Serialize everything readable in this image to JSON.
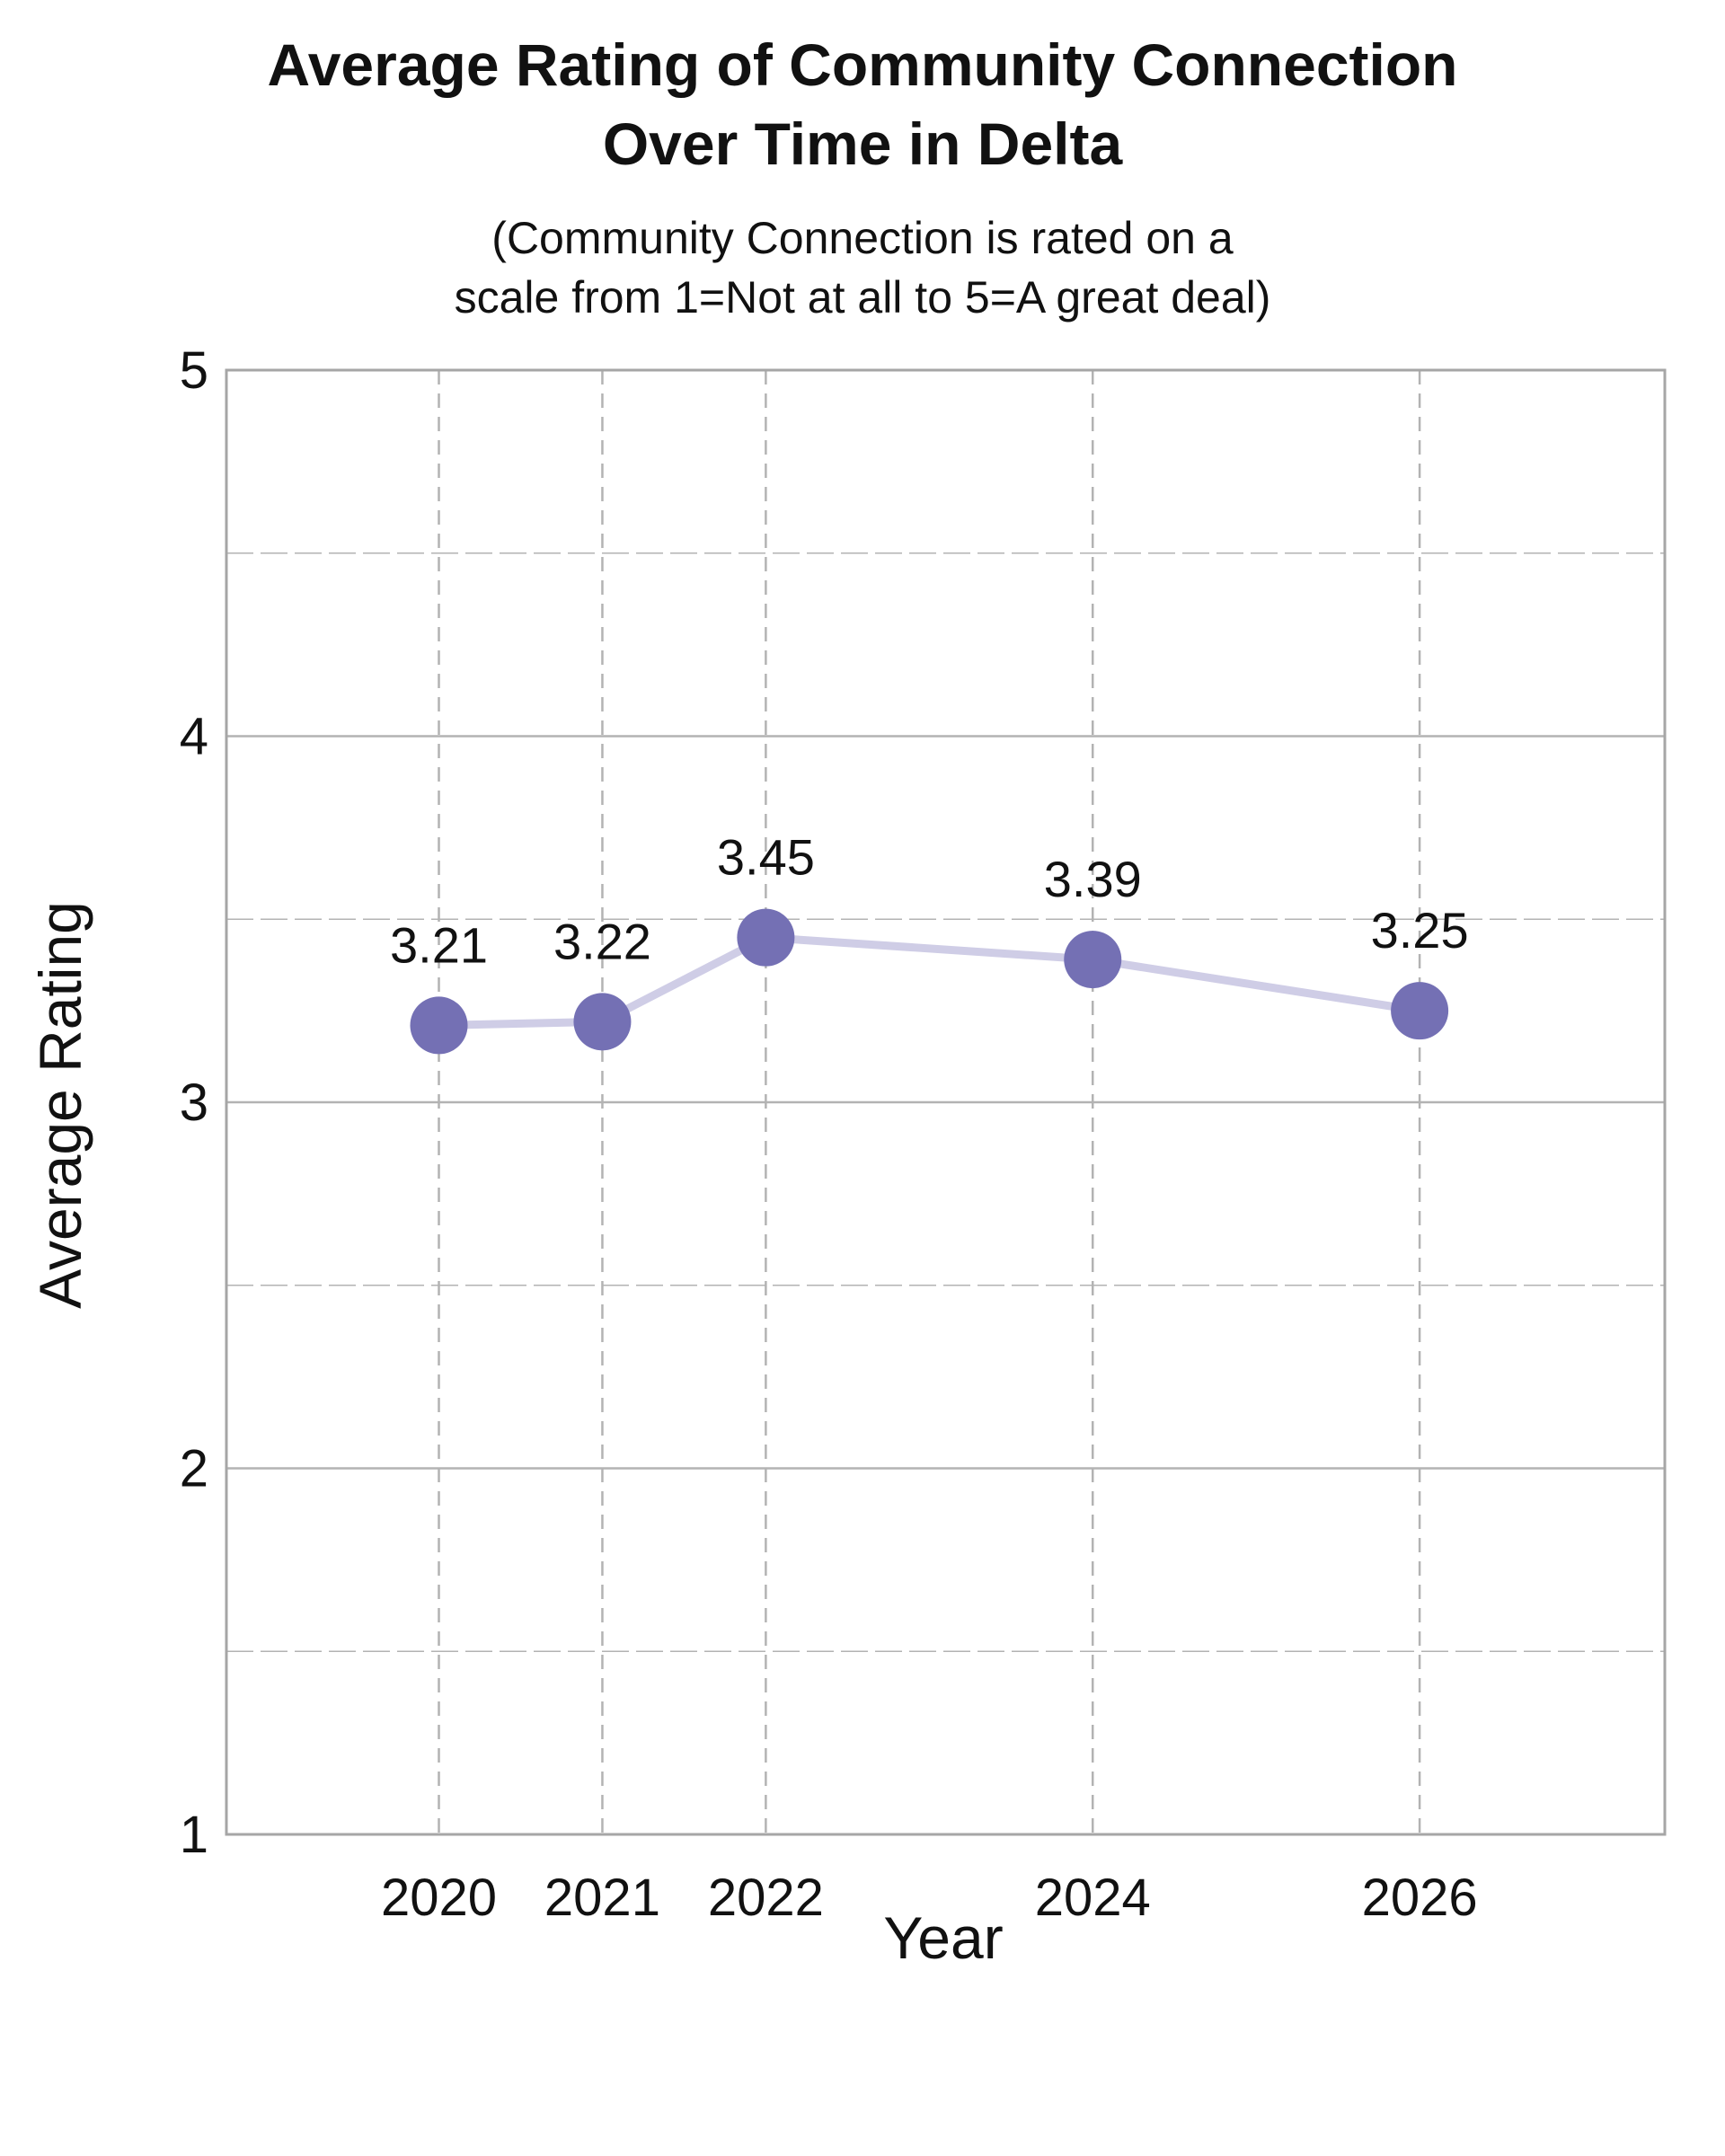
{
  "chart_data": {
    "type": "line",
    "title_line1": "Average Rating of Community Connection",
    "title_line2": "Over Time in Delta",
    "subtitle_line1": "(Community Connection is rated on a",
    "subtitle_line2": "scale from 1=Not at all to 5=A great deal)",
    "xlabel": "Year",
    "ylabel": "Average Rating",
    "x": [
      2020,
      2021,
      2022,
      2024,
      2026
    ],
    "values": [
      3.21,
      3.22,
      3.45,
      3.39,
      3.25
    ],
    "data_labels": [
      "3.21",
      "3.22",
      "3.45",
      "3.39",
      "3.25"
    ],
    "x_tick_labels": [
      "2020",
      "2021",
      "2022",
      "2024",
      "2026"
    ],
    "y_ticks": [
      1,
      2,
      3,
      4,
      5
    ],
    "xlim": [
      2018.7,
      2027.5
    ],
    "ylim": [
      1,
      5
    ],
    "grid": true,
    "colors": {
      "marker": "#7470b4",
      "line": "#cfcde6",
      "grid": "#b3b3b3",
      "frame": "#a6a6a6"
    }
  }
}
